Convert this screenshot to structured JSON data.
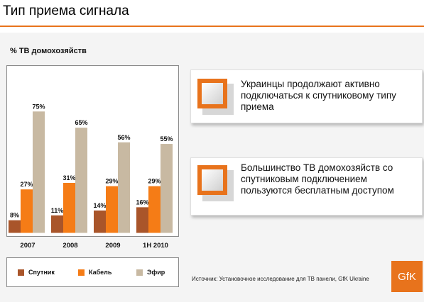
{
  "page": {
    "title": "Тип приема сигнала"
  },
  "chart_data": {
    "type": "bar",
    "title": "% ТВ домохозяйств",
    "categories": [
      "2007",
      "2008",
      "2009",
      "1H 2010"
    ],
    "series": [
      {
        "name": "Спутник",
        "values": [
          8,
          11,
          14,
          16
        ],
        "color": "#a9552a"
      },
      {
        "name": "Кабель",
        "values": [
          27,
          31,
          29,
          29
        ],
        "color": "#f57c16"
      },
      {
        "name": "Эфир",
        "values": [
          75,
          65,
          56,
          55
        ],
        "color": "#c8b9a2"
      }
    ],
    "value_labels": [
      [
        "8%",
        "27%",
        "75%"
      ],
      [
        "11%",
        "31%",
        "65%"
      ],
      [
        "14%",
        "29%",
        "56%"
      ],
      [
        "16%",
        "29%",
        "55%"
      ]
    ],
    "ylim": [
      0,
      100
    ],
    "grid": false,
    "legend_position": "bottom"
  },
  "callouts": [
    {
      "text": "Украинцы продолжают активно подключаться к спутниковому типу приема"
    },
    {
      "text": "Большинство ТВ домохозяйств со спутниковым подключением пользуются бесплатным доступом"
    }
  ],
  "source": "Источник: Установочное исследование для ТВ панели, GfK Ukraine",
  "logo": "GfK",
  "colors": {
    "accent": "#e8731c",
    "panel": "#f4f4f4"
  }
}
